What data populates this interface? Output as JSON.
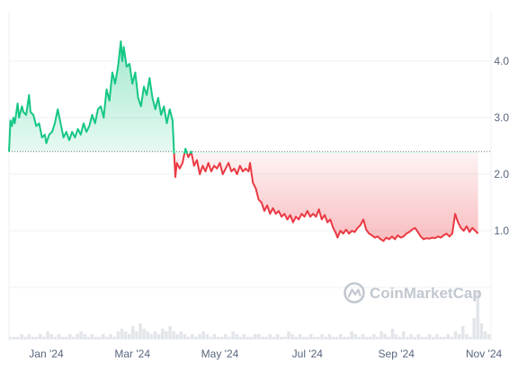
{
  "chart_data": {
    "type": "area",
    "baseline": 2.4,
    "ylim": [
      0,
      4.9
    ],
    "y_ticks": [
      {
        "value": 1.0,
        "label": "1.0"
      },
      {
        "value": 2.0,
        "label": "2.0"
      },
      {
        "value": 3.0,
        "label": "3.0"
      },
      {
        "value": 4.0,
        "label": "4.0"
      }
    ],
    "x_ticks": [
      {
        "date": "2024-01-15",
        "label": "Jan '24"
      },
      {
        "date": "2024-03-15",
        "label": "Mar '24"
      },
      {
        "date": "2024-05-15",
        "label": "May '24"
      },
      {
        "date": "2024-07-15",
        "label": "Jul '24"
      },
      {
        "date": "2024-09-15",
        "label": "Sep '24"
      },
      {
        "date": "2024-11-15",
        "label": "Nov '24"
      }
    ],
    "xlim": [
      "2023-12-20",
      "2024-11-20"
    ],
    "colors": {
      "up_line": "#16c784",
      "up_fill": "#16c784",
      "down_line": "#ea3943",
      "down_fill": "#ea3943",
      "grid": "#eef0f3",
      "baseline": "#777777",
      "volume": "#e3e6ea"
    },
    "grid": true,
    "legend": "none",
    "series": [
      {
        "points": [
          [
            "2023-12-20",
            2.4
          ],
          [
            "2023-12-21",
            2.95
          ],
          [
            "2023-12-22",
            2.85
          ],
          [
            "2023-12-23",
            3.0
          ],
          [
            "2023-12-24",
            2.9
          ],
          [
            "2023-12-26",
            3.25
          ],
          [
            "2023-12-27",
            3.0
          ],
          [
            "2023-12-29",
            3.2
          ],
          [
            "2023-12-30",
            3.1
          ],
          [
            "2024-01-01",
            3.05
          ],
          [
            "2024-01-03",
            3.4
          ],
          [
            "2024-01-04",
            3.1
          ],
          [
            "2024-01-06",
            3.05
          ],
          [
            "2024-01-08",
            2.85
          ],
          [
            "2024-01-10",
            2.9
          ],
          [
            "2024-01-12",
            2.65
          ],
          [
            "2024-01-14",
            2.7
          ],
          [
            "2024-01-15",
            2.55
          ],
          [
            "2024-01-17",
            2.7
          ],
          [
            "2024-01-19",
            2.75
          ],
          [
            "2024-01-21",
            2.9
          ],
          [
            "2024-01-23",
            3.15
          ],
          [
            "2024-01-25",
            2.9
          ],
          [
            "2024-01-27",
            2.65
          ],
          [
            "2024-01-29",
            2.75
          ],
          [
            "2024-01-31",
            2.6
          ],
          [
            "2024-02-02",
            2.75
          ],
          [
            "2024-02-04",
            2.65
          ],
          [
            "2024-02-06",
            2.8
          ],
          [
            "2024-02-08",
            2.7
          ],
          [
            "2024-02-10",
            2.9
          ],
          [
            "2024-02-12",
            2.75
          ],
          [
            "2024-02-14",
            2.85
          ],
          [
            "2024-02-16",
            3.05
          ],
          [
            "2024-02-18",
            2.9
          ],
          [
            "2024-02-20",
            3.15
          ],
          [
            "2024-02-22",
            3.2
          ],
          [
            "2024-02-24",
            3.0
          ],
          [
            "2024-02-26",
            3.5
          ],
          [
            "2024-02-28",
            3.3
          ],
          [
            "2024-03-01",
            3.8
          ],
          [
            "2024-03-03",
            3.6
          ],
          [
            "2024-03-05",
            3.9
          ],
          [
            "2024-03-07",
            4.35
          ],
          [
            "2024-03-08",
            4.0
          ],
          [
            "2024-03-09",
            4.25
          ],
          [
            "2024-03-11",
            3.9
          ],
          [
            "2024-03-13",
            3.95
          ],
          [
            "2024-03-15",
            3.6
          ],
          [
            "2024-03-17",
            3.8
          ],
          [
            "2024-03-19",
            3.35
          ],
          [
            "2024-03-21",
            3.2
          ],
          [
            "2024-03-23",
            3.55
          ],
          [
            "2024-03-25",
            3.4
          ],
          [
            "2024-03-27",
            3.7
          ],
          [
            "2024-03-29",
            3.35
          ],
          [
            "2024-03-31",
            3.15
          ],
          [
            "2024-04-02",
            3.35
          ],
          [
            "2024-04-04",
            3.05
          ],
          [
            "2024-04-06",
            3.2
          ],
          [
            "2024-04-08",
            2.9
          ],
          [
            "2024-04-10",
            3.15
          ],
          [
            "2024-04-12",
            2.95
          ],
          [
            "2024-04-13",
            2.4
          ],
          [
            "2024-04-14",
            1.95
          ],
          [
            "2024-04-15",
            2.2
          ],
          [
            "2024-04-17",
            2.1
          ],
          [
            "2024-04-19",
            2.2
          ],
          [
            "2024-04-21",
            2.45
          ],
          [
            "2024-04-23",
            2.3
          ],
          [
            "2024-04-25",
            2.4
          ],
          [
            "2024-04-27",
            2.15
          ],
          [
            "2024-04-29",
            2.25
          ],
          [
            "2024-05-01",
            2.0
          ],
          [
            "2024-05-03",
            2.15
          ],
          [
            "2024-05-05",
            2.05
          ],
          [
            "2024-05-07",
            2.2
          ],
          [
            "2024-05-09",
            2.05
          ],
          [
            "2024-05-11",
            2.15
          ],
          [
            "2024-05-13",
            2.1
          ],
          [
            "2024-05-15",
            2.2
          ],
          [
            "2024-05-17",
            2.0
          ],
          [
            "2024-05-19",
            2.1
          ],
          [
            "2024-05-21",
            2.2
          ],
          [
            "2024-05-23",
            2.05
          ],
          [
            "2024-05-25",
            2.1
          ],
          [
            "2024-05-27",
            2.0
          ],
          [
            "2024-05-29",
            2.15
          ],
          [
            "2024-05-31",
            2.05
          ],
          [
            "2024-06-02",
            2.1
          ],
          [
            "2024-06-04",
            2.05
          ],
          [
            "2024-06-05",
            2.2
          ],
          [
            "2024-06-07",
            1.85
          ],
          [
            "2024-06-09",
            1.75
          ],
          [
            "2024-06-11",
            1.55
          ],
          [
            "2024-06-13",
            1.5
          ],
          [
            "2024-06-15",
            1.35
          ],
          [
            "2024-06-17",
            1.45
          ],
          [
            "2024-06-19",
            1.3
          ],
          [
            "2024-06-21",
            1.4
          ],
          [
            "2024-06-23",
            1.3
          ],
          [
            "2024-06-25",
            1.35
          ],
          [
            "2024-06-27",
            1.25
          ],
          [
            "2024-06-29",
            1.3
          ],
          [
            "2024-07-01",
            1.2
          ],
          [
            "2024-07-03",
            1.28
          ],
          [
            "2024-07-05",
            1.15
          ],
          [
            "2024-07-07",
            1.25
          ],
          [
            "2024-07-09",
            1.2
          ],
          [
            "2024-07-11",
            1.3
          ],
          [
            "2024-07-13",
            1.25
          ],
          [
            "2024-07-15",
            1.35
          ],
          [
            "2024-07-17",
            1.25
          ],
          [
            "2024-07-19",
            1.3
          ],
          [
            "2024-07-21",
            1.25
          ],
          [
            "2024-07-23",
            1.38
          ],
          [
            "2024-07-25",
            1.2
          ],
          [
            "2024-07-27",
            1.28
          ],
          [
            "2024-07-29",
            1.15
          ],
          [
            "2024-07-31",
            1.2
          ],
          [
            "2024-08-02",
            1.05
          ],
          [
            "2024-08-04",
            0.95
          ],
          [
            "2024-08-05",
            0.88
          ],
          [
            "2024-08-07",
            1.0
          ],
          [
            "2024-08-09",
            0.95
          ],
          [
            "2024-08-11",
            1.02
          ],
          [
            "2024-08-13",
            0.95
          ],
          [
            "2024-08-15",
            1.0
          ],
          [
            "2024-08-17",
            0.98
          ],
          [
            "2024-08-19",
            1.05
          ],
          [
            "2024-08-21",
            1.1
          ],
          [
            "2024-08-23",
            1.2
          ],
          [
            "2024-08-25",
            1.02
          ],
          [
            "2024-08-27",
            0.95
          ],
          [
            "2024-08-29",
            0.92
          ],
          [
            "2024-08-31",
            0.88
          ],
          [
            "2024-09-02",
            0.9
          ],
          [
            "2024-09-04",
            0.85
          ],
          [
            "2024-09-06",
            0.82
          ],
          [
            "2024-09-08",
            0.88
          ],
          [
            "2024-09-10",
            0.85
          ],
          [
            "2024-09-12",
            0.9
          ],
          [
            "2024-09-14",
            0.85
          ],
          [
            "2024-09-16",
            0.92
          ],
          [
            "2024-09-18",
            0.88
          ],
          [
            "2024-09-20",
            0.9
          ],
          [
            "2024-09-22",
            0.95
          ],
          [
            "2024-09-24",
            0.98
          ],
          [
            "2024-09-26",
            1.02
          ],
          [
            "2024-09-28",
            1.05
          ],
          [
            "2024-09-30",
            0.98
          ],
          [
            "2024-10-02",
            0.9
          ],
          [
            "2024-10-04",
            0.85
          ],
          [
            "2024-10-06",
            0.87
          ],
          [
            "2024-10-08",
            0.86
          ],
          [
            "2024-10-10",
            0.88
          ],
          [
            "2024-10-12",
            0.87
          ],
          [
            "2024-10-14",
            0.9
          ],
          [
            "2024-10-16",
            0.88
          ],
          [
            "2024-10-18",
            0.92
          ],
          [
            "2024-10-20",
            0.95
          ],
          [
            "2024-10-22",
            0.9
          ],
          [
            "2024-10-24",
            0.95
          ],
          [
            "2024-10-26",
            1.3
          ],
          [
            "2024-10-28",
            1.15
          ],
          [
            "2024-10-30",
            1.05
          ],
          [
            "2024-11-01",
            1.0
          ],
          [
            "2024-11-03",
            1.08
          ],
          [
            "2024-11-05",
            0.98
          ],
          [
            "2024-11-07",
            1.05
          ],
          [
            "2024-11-09",
            1.0
          ],
          [
            "2024-11-11",
            0.95
          ]
        ]
      }
    ],
    "volume": [
      1,
      1,
      1,
      2,
      1,
      2,
      1,
      1,
      2,
      1,
      3,
      2,
      1,
      2,
      1,
      1,
      2,
      1,
      2,
      3,
      2,
      1,
      2,
      1,
      1,
      2,
      1,
      2,
      1,
      3,
      4,
      3,
      2,
      5,
      3,
      6,
      4,
      3,
      2,
      3,
      2,
      4,
      3,
      5,
      3,
      2,
      3,
      2,
      1,
      2,
      1,
      2,
      3,
      2,
      1,
      2,
      1,
      1,
      2,
      1,
      3,
      2,
      1,
      2,
      1,
      1,
      2,
      2,
      1,
      1,
      2,
      1,
      2,
      1,
      1,
      3,
      2,
      1,
      2,
      1,
      1,
      2,
      1,
      1,
      2,
      1,
      2,
      1,
      1,
      2,
      1,
      1,
      3,
      2,
      1,
      2,
      1,
      1,
      2,
      1,
      3,
      2,
      1,
      4,
      2,
      1,
      3,
      1,
      2,
      1,
      2,
      1,
      1,
      2,
      1,
      2,
      1,
      1,
      2,
      1,
      3,
      2,
      5,
      2,
      1,
      8,
      18,
      6,
      3,
      2
    ],
    "watermark": "CoinMarketCap"
  }
}
